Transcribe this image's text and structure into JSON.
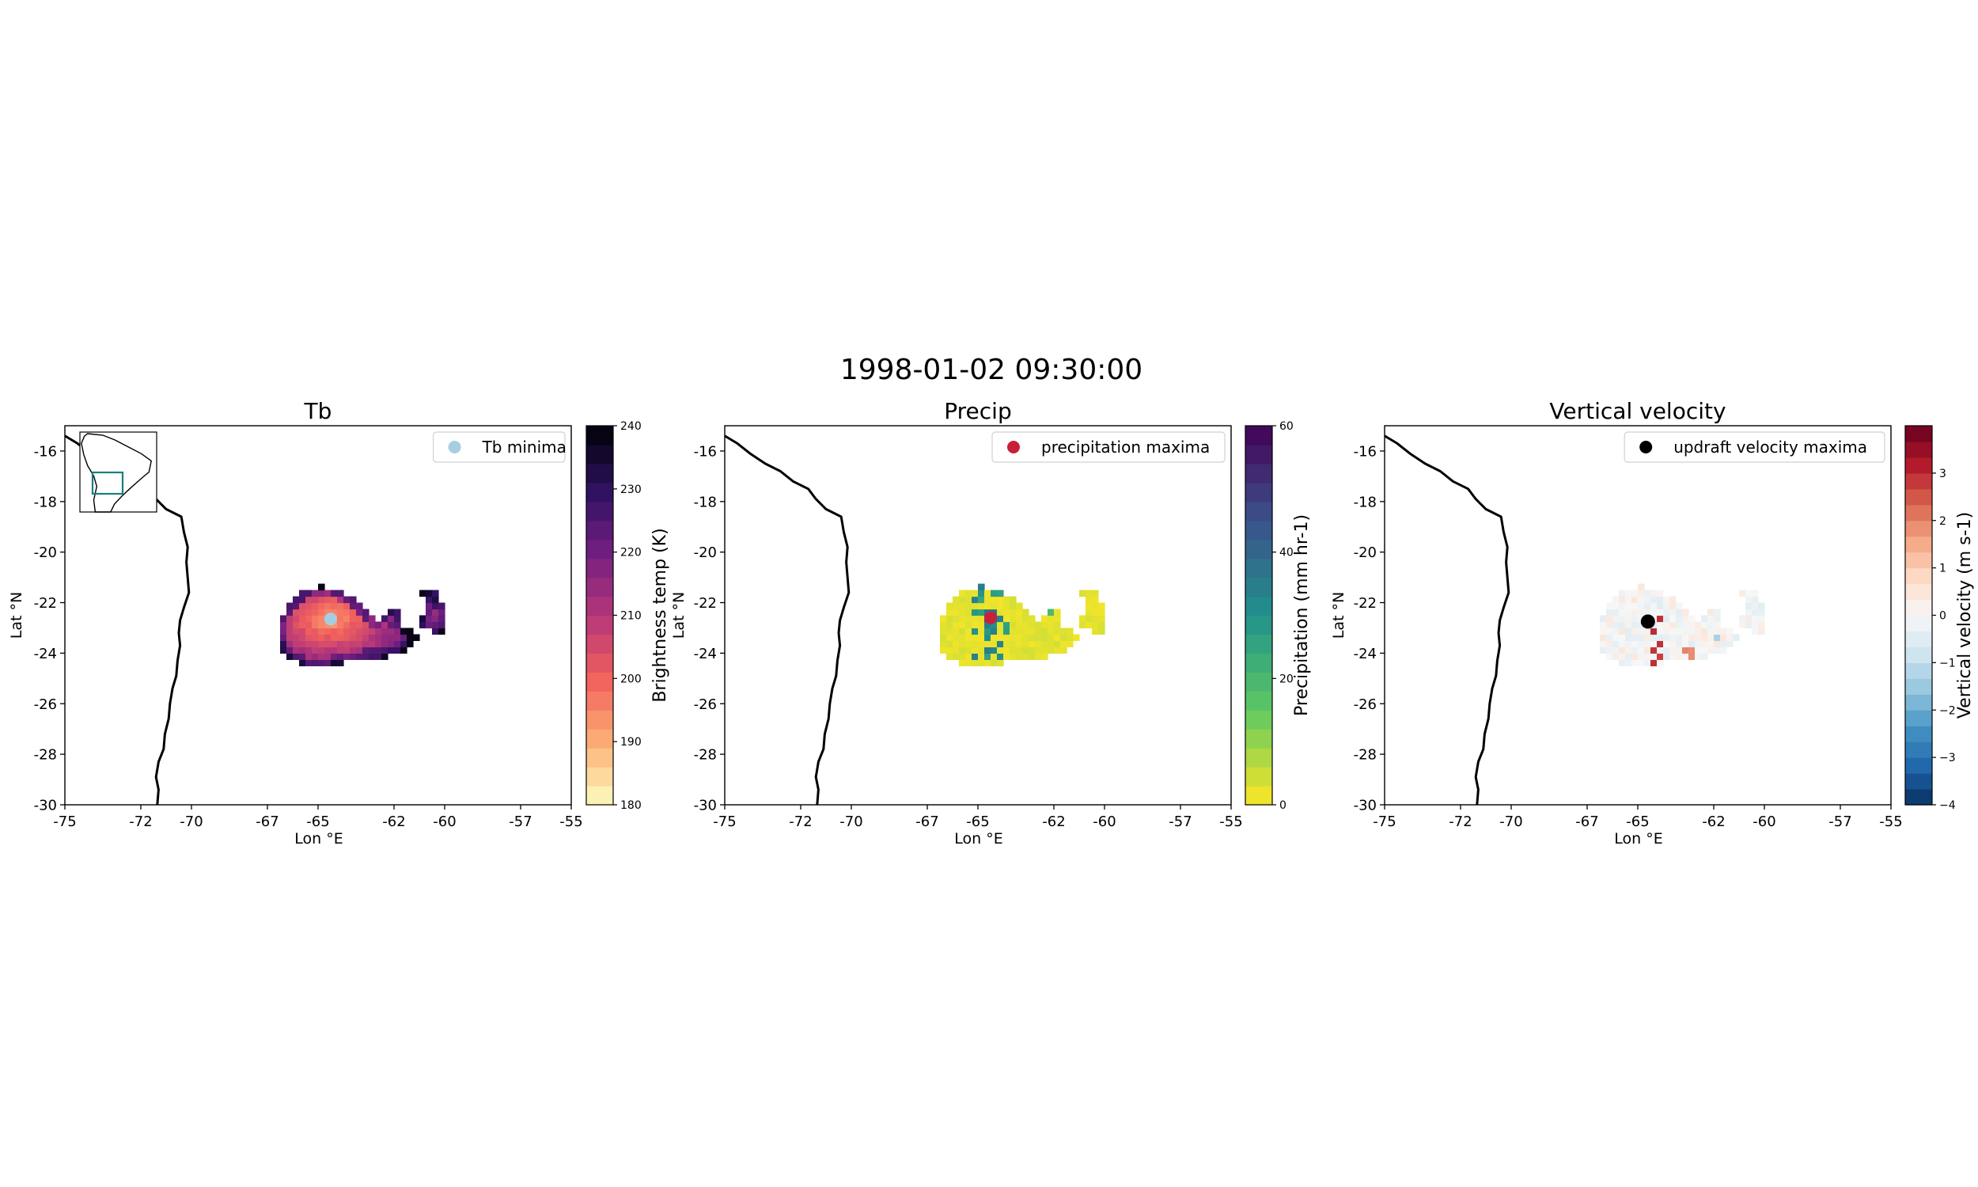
{
  "suptitle": "1998-01-02 09:30:00",
  "chart_data": [
    {
      "type": "heatmap",
      "title": "Tb",
      "xlabel": "Lon $^\\circ$E",
      "ylabel": "Lat $^\\circ$N",
      "xlabel_display": "Lon °E",
      "ylabel_display": "Lat °N",
      "xlim": [
        -75,
        -55
      ],
      "ylim": [
        -30,
        -15
      ],
      "xticks": [
        -75,
        -72,
        -70,
        -67,
        -65,
        -62,
        -60,
        -57,
        -55
      ],
      "xtick_labels": [
        "-75",
        "-72",
        "-70",
        "-67",
        "-65",
        "-62",
        "-60",
        "-57",
        "-55"
      ],
      "yticks": [
        -16,
        -18,
        -20,
        -22,
        -24,
        -26,
        -28,
        -30
      ],
      "ytick_labels": [
        "-16",
        "-18",
        "-20",
        "-22",
        "-24",
        "-26",
        "-28",
        "-30"
      ],
      "colorbar": {
        "label": "Brightness temp (K)",
        "min": 180,
        "max": 240,
        "ticks": [
          180,
          190,
          200,
          210,
          220,
          230,
          240
        ],
        "tick_labels": [
          "180",
          "190",
          "200",
          "210",
          "220",
          "230",
          "240"
        ],
        "colormap": "magma_r"
      },
      "legend": {
        "label": "Tb minima",
        "marker_color": "#a6cee3",
        "location": "upper right"
      },
      "marker": {
        "lon": -64.5,
        "lat": -22.65
      },
      "inset_map": true,
      "inset_box_color": "#1b7f7a"
    },
    {
      "type": "heatmap",
      "title": "Precip",
      "xlabel": "Lon $^\\circ$E",
      "ylabel": "Lat $^\\circ$N",
      "xlabel_display": "Lon °E",
      "ylabel_display": "Lat °N",
      "xlim": [
        -75,
        -55
      ],
      "ylim": [
        -30,
        -15
      ],
      "xticks": [
        -75,
        -72,
        -70,
        -67,
        -65,
        -62,
        -60,
        -57,
        -55
      ],
      "xtick_labels": [
        "-75",
        "-72",
        "-70",
        "-67",
        "-65",
        "-62",
        "-60",
        "-57",
        "-55"
      ],
      "yticks": [
        -16,
        -18,
        -20,
        -22,
        -24,
        -26,
        -28,
        -30
      ],
      "ytick_labels": [
        "-16",
        "-18",
        "-20",
        "-22",
        "-24",
        "-26",
        "-28",
        "-30"
      ],
      "colorbar": {
        "label": "Precipitation (mm hr-1)",
        "min": 0,
        "max": 60,
        "ticks": [
          0,
          20,
          40,
          60
        ],
        "tick_labels": [
          "0",
          "20",
          "40",
          "60"
        ],
        "colormap": "viridis_r"
      },
      "legend": {
        "label": "precipitation maxima",
        "marker_color": "#c8203a",
        "location": "upper right"
      },
      "marker": {
        "lon": -64.5,
        "lat": -22.6
      }
    },
    {
      "type": "heatmap",
      "title": "Vertical velocity",
      "xlabel": "Lon $^\\circ$E",
      "ylabel": "Lat $^\\circ$N",
      "xlabel_display": "Lon °E",
      "ylabel_display": "Lat °N",
      "xlim": [
        -75,
        -55
      ],
      "ylim": [
        -30,
        -15
      ],
      "xticks": [
        -75,
        -72,
        -70,
        -67,
        -65,
        -62,
        -60,
        -57,
        -55
      ],
      "xtick_labels": [
        "-75",
        "-72",
        "-70",
        "-67",
        "-65",
        "-62",
        "-60",
        "-57",
        "-55"
      ],
      "yticks": [
        -16,
        -18,
        -20,
        -22,
        -24,
        -26,
        -28,
        -30
      ],
      "ytick_labels": [
        "-16",
        "-18",
        "-20",
        "-22",
        "-24",
        "-26",
        "-28",
        "-30"
      ],
      "colorbar": {
        "label": "Vertical velocity (m s-1)",
        "min": -4,
        "max": 4,
        "ticks": [
          -4,
          -3,
          -2,
          -1,
          0,
          1,
          2,
          3
        ],
        "tick_labels": [
          "−4",
          "−3",
          "−2",
          "−1",
          "0",
          "1",
          "2",
          "3"
        ],
        "colormap": "RdBu_r"
      },
      "legend": {
        "label": "updraft velocity maxima",
        "marker_color": "#000000",
        "location": "upper right"
      },
      "marker": {
        "lon": -64.6,
        "lat": -22.75
      }
    }
  ]
}
